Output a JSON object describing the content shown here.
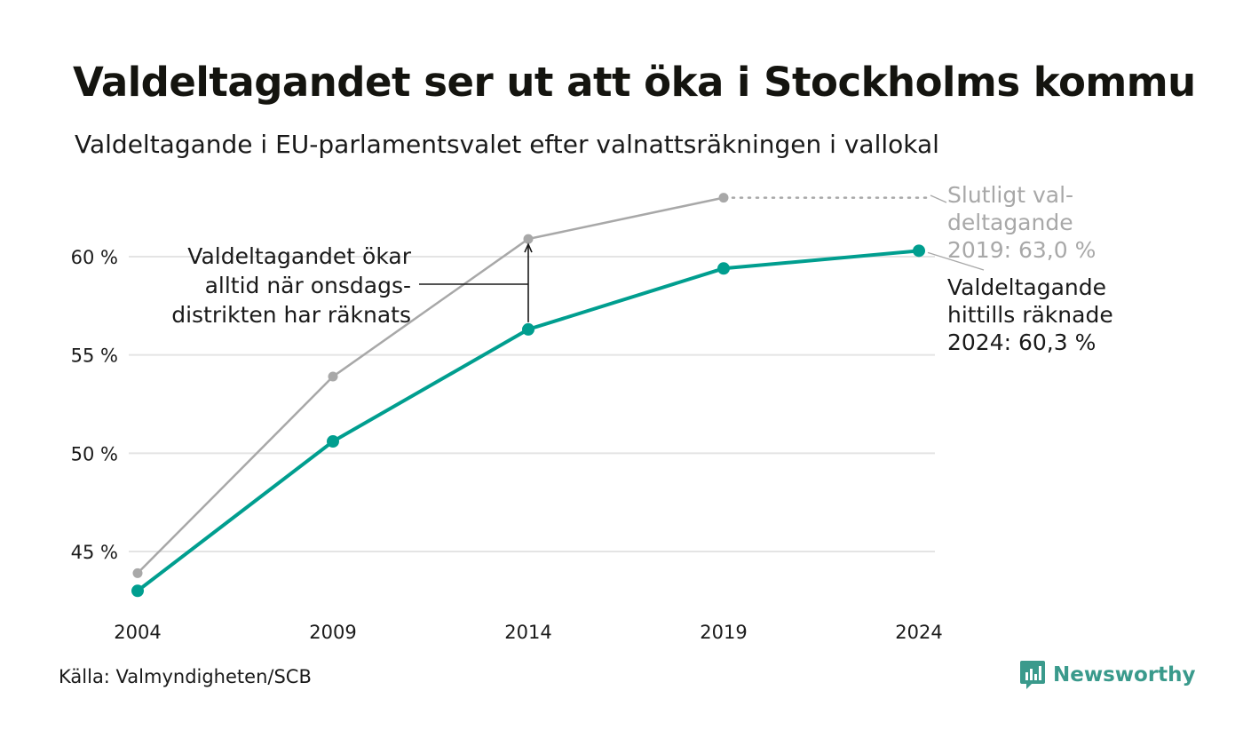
{
  "title": "Valdeltagandet ser ut att öka i Stockholms kommu",
  "subtitle": "Valdeltagande i EU-parlamentsvalet efter valnattsräkningen i vallokal",
  "source": "Källa: Valmyndigheten/SCB",
  "logo_text": "Newsworthy",
  "colors": {
    "counted": "#009e8f",
    "final": "#a8a8a8",
    "grid": "#e4e4e4",
    "logo": "#3a9a8c"
  },
  "chart_data": {
    "type": "line",
    "x": [
      2004,
      2009,
      2014,
      2019,
      2024
    ],
    "xticks": [
      "2004",
      "2009",
      "2014",
      "2019",
      "2024"
    ],
    "yticks": [
      {
        "value": 45,
        "label": "45 %"
      },
      {
        "value": 50,
        "label": "50 %"
      },
      {
        "value": 55,
        "label": "55 %"
      },
      {
        "value": 60,
        "label": "60 %"
      }
    ],
    "ylim": [
      43,
      63
    ],
    "grid": true,
    "series": [
      {
        "key": "final",
        "values": [
          43.9,
          53.9,
          60.9,
          63.0,
          null
        ]
      },
      {
        "key": "counted",
        "values": [
          43.0,
          50.6,
          56.3,
          59.4,
          60.3
        ]
      }
    ],
    "annotations": {
      "final_label": [
        "Slutligt val-",
        "deltagande",
        "2019: 63,0 %"
      ],
      "counted_label": [
        "Valdeltagande",
        "hittills räknade",
        "2024: 60,3 %"
      ],
      "increase_note": [
        "Valdeltagandet ökar",
        "alltid när onsdags-",
        "distrikten har räknats"
      ]
    }
  }
}
